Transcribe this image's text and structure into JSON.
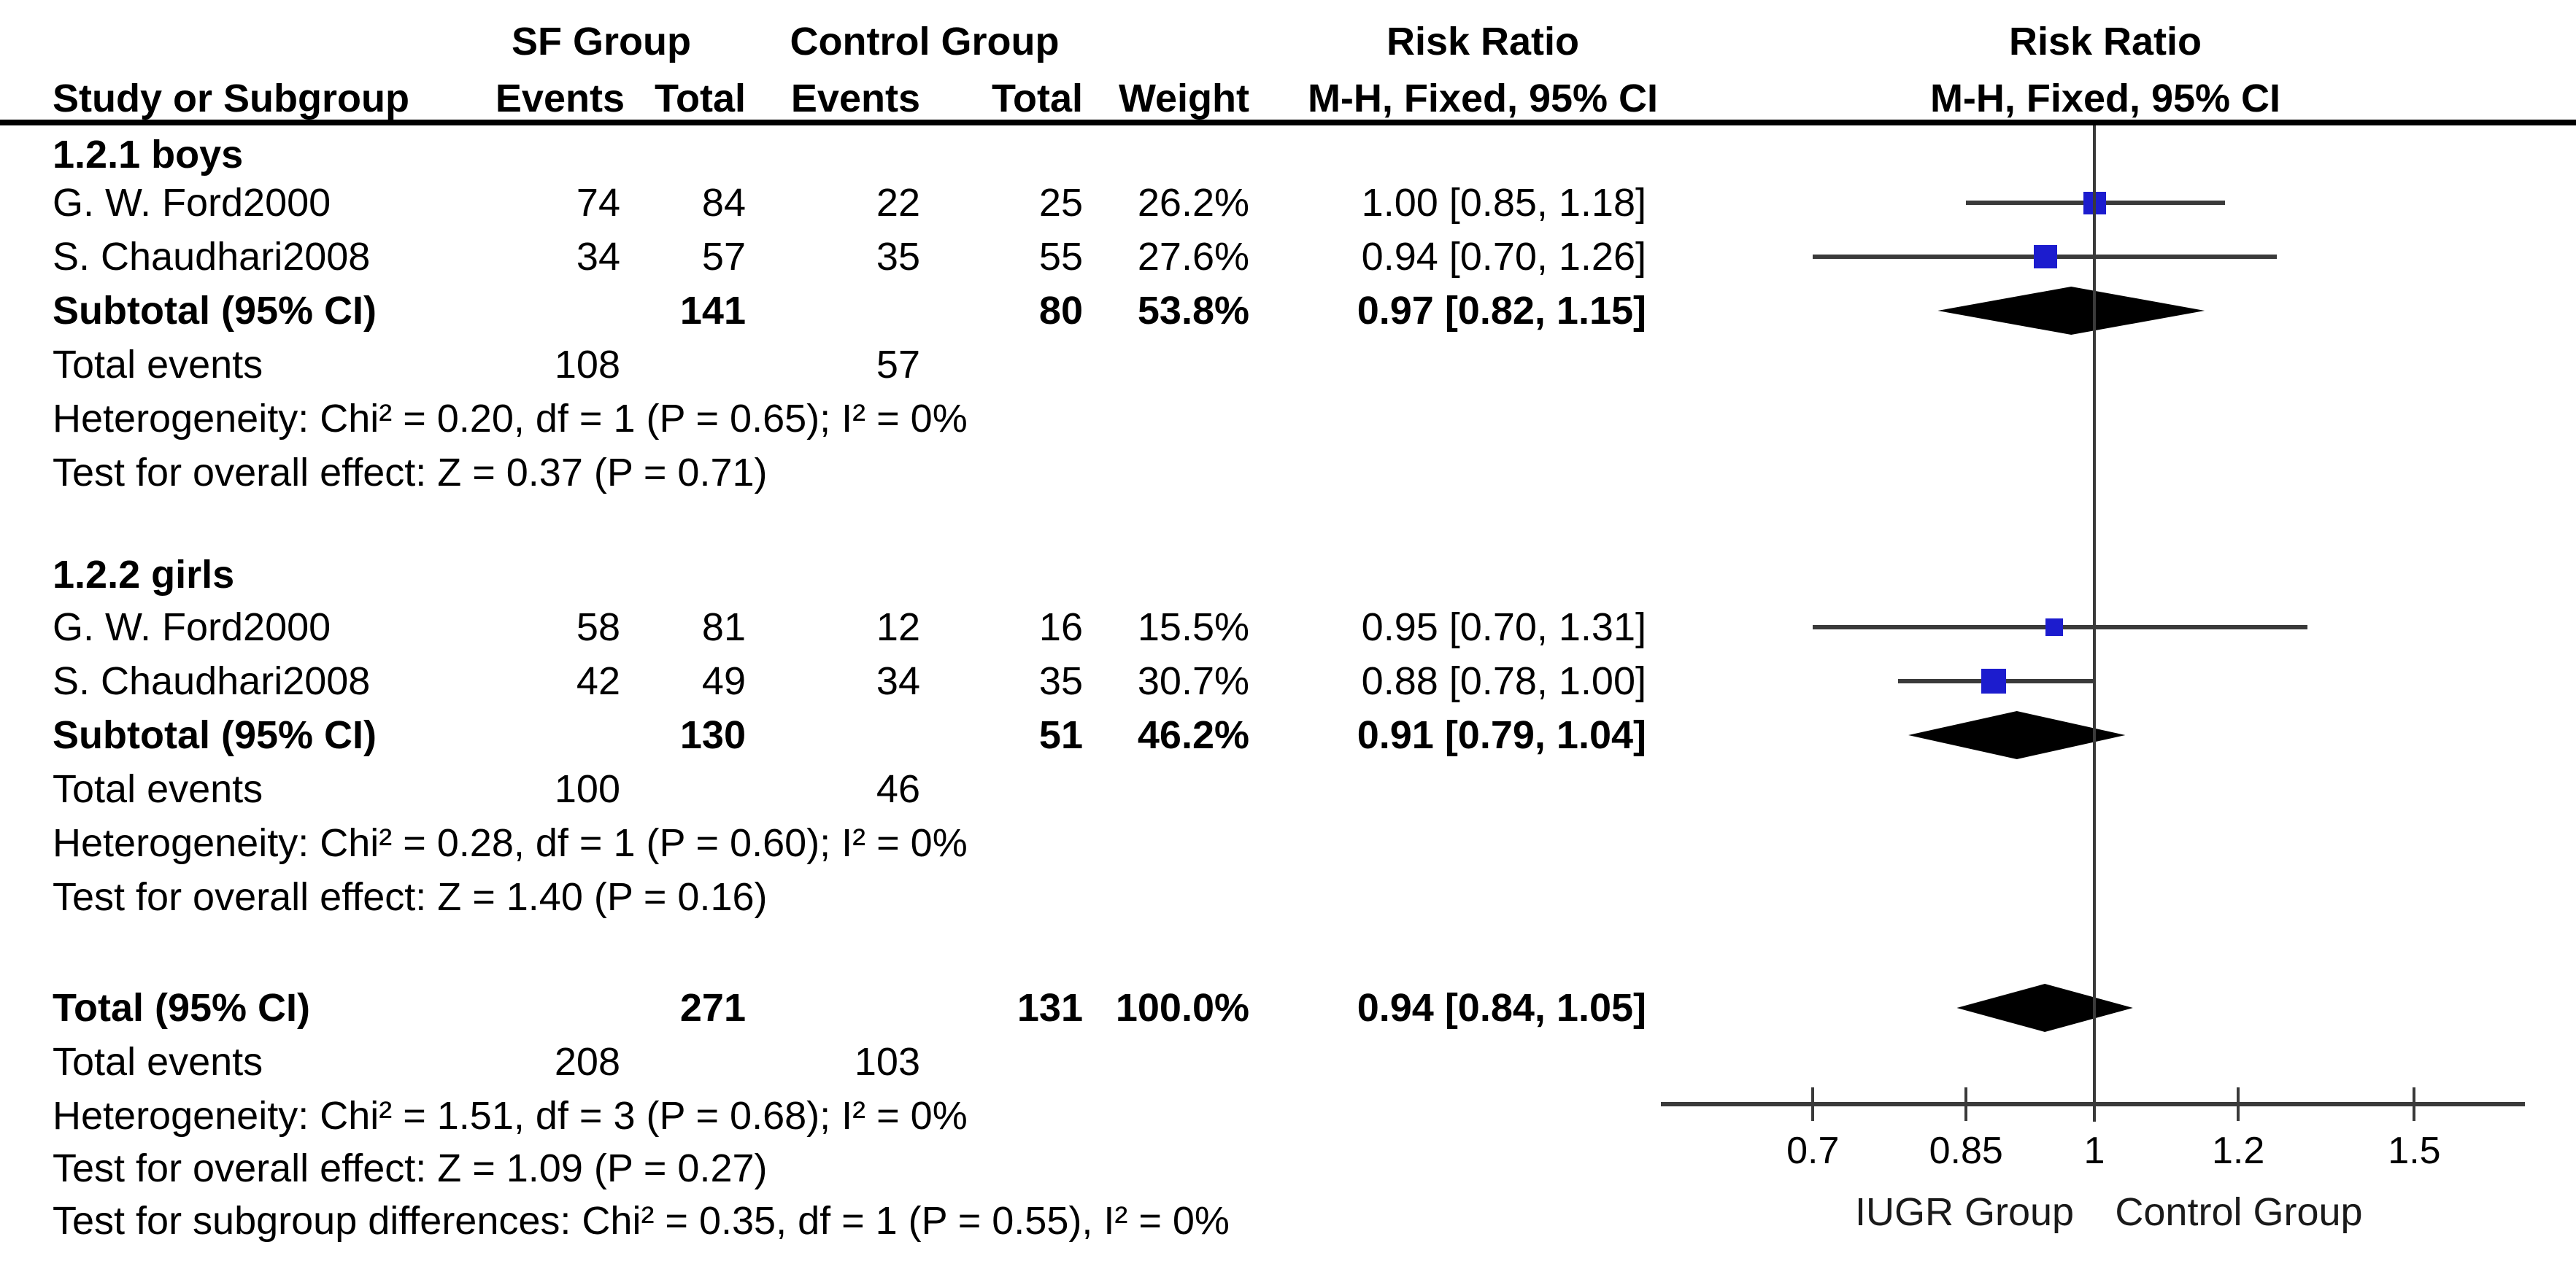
{
  "colors": {
    "square_blue": "#1c1cce",
    "diamond_black": "#000000",
    "line_gray": "#3a3a3a",
    "text_black": "#000000"
  },
  "table_header": {
    "group1": "SF Group",
    "group2": "Control Group",
    "col_study": "Study or Subgroup",
    "col_events1": "Events",
    "col_total1": "Total",
    "col_events2": "Events",
    "col_total2": "Total",
    "col_weight": "Weight",
    "stat_title": "Risk Ratio",
    "stat_sub": "M-H, Fixed, 95% CI",
    "plot_title": "Risk Ratio",
    "plot_sub": "M-H, Fixed, 95% CI"
  },
  "chart_data": {
    "type": "forest",
    "effect_measure": "Risk Ratio",
    "model": "M-H, Fixed, 95% CI",
    "axis": {
      "scale": "log",
      "ticks": [
        0.7,
        0.85,
        1,
        1.2,
        1.5
      ],
      "tick_labels": [
        "0.7",
        "0.85",
        "1",
        "1.2",
        "1.5"
      ],
      "left_label": "IUGR Group",
      "right_label": "Control Group",
      "grid": false
    },
    "subgroups": [
      {
        "label": "1.2.1 boys",
        "studies": [
          {
            "name": "G. W. Ford2000",
            "events1": "74",
            "total1": "84",
            "events2": "22",
            "total2": "25",
            "weight": "26.2%",
            "weight_value": 26.2,
            "rr": 1.0,
            "ci_low": 0.85,
            "ci_high": 1.18,
            "rr_text": "1.00 [0.85, 1.18]"
          },
          {
            "name": "S. Chaudhari2008",
            "events1": "34",
            "total1": "57",
            "events2": "35",
            "total2": "55",
            "weight": "27.6%",
            "weight_value": 27.6,
            "rr": 0.94,
            "ci_low": 0.7,
            "ci_high": 1.26,
            "rr_text": "0.94 [0.70, 1.26]"
          }
        ],
        "subtotal": {
          "label": "Subtotal (95% CI)",
          "total1": "141",
          "total2": "80",
          "weight": "53.8%",
          "rr": 0.97,
          "ci_low": 0.82,
          "ci_high": 1.15,
          "rr_text": "0.97 [0.82, 1.15]"
        },
        "total_events": {
          "label": "Total events",
          "events1": "108",
          "events2": "57"
        },
        "heterogeneity": "Heterogeneity: Chi² = 0.20, df = 1 (P = 0.65); I² = 0%",
        "overall_effect": "Test for overall effect: Z = 0.37 (P = 0.71)"
      },
      {
        "label": "1.2.2 girls",
        "studies": [
          {
            "name": "G. W. Ford2000",
            "events1": "58",
            "total1": "81",
            "events2": "12",
            "total2": "16",
            "weight": "15.5%",
            "weight_value": 15.5,
            "rr": 0.95,
            "ci_low": 0.7,
            "ci_high": 1.31,
            "rr_text": "0.95 [0.70, 1.31]"
          },
          {
            "name": "S. Chaudhari2008",
            "events1": "42",
            "total1": "49",
            "events2": "34",
            "total2": "35",
            "weight": "30.7%",
            "weight_value": 30.7,
            "rr": 0.88,
            "ci_low": 0.78,
            "ci_high": 1.0,
            "rr_text": "0.88 [0.78, 1.00]"
          }
        ],
        "subtotal": {
          "label": "Subtotal (95% CI)",
          "total1": "130",
          "total2": "51",
          "weight": "46.2%",
          "rr": 0.91,
          "ci_low": 0.79,
          "ci_high": 1.04,
          "rr_text": "0.91 [0.79, 1.04]"
        },
        "total_events": {
          "label": "Total events",
          "events1": "100",
          "events2": "46"
        },
        "heterogeneity": "Heterogeneity: Chi² = 0.28, df = 1 (P = 0.60); I² = 0%",
        "overall_effect": "Test for overall effect: Z = 1.40 (P = 0.16)"
      }
    ],
    "total": {
      "label": "Total (95% CI)",
      "total1": "271",
      "total2": "131",
      "weight": "100.0%",
      "rr": 0.94,
      "ci_low": 0.84,
      "ci_high": 1.05,
      "rr_text": "0.94 [0.84, 1.05]",
      "total_events": {
        "label": "Total events",
        "events1": "208",
        "events2": "103"
      },
      "heterogeneity": "Heterogeneity: Chi² = 1.51, df = 3 (P = 0.68); I² = 0%",
      "overall_effect": "Test for overall effect: Z = 1.09 (P = 0.27)",
      "subgroup_differences": "Test for subgroup differences: Chi² = 0.35, df = 1 (P = 0.55), I² = 0%"
    }
  }
}
